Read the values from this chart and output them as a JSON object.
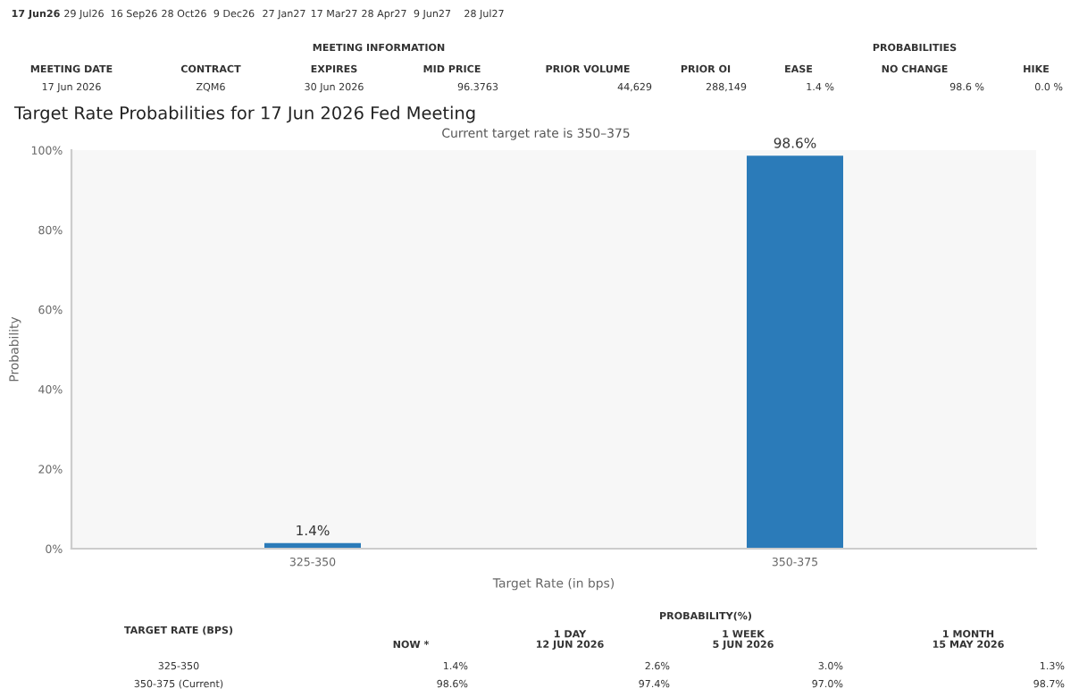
{
  "chart_data": {
    "type": "bar",
    "title": "Target Rate Probabilities for 17 Jun 2026 Fed Meeting",
    "subtitle": "Current target rate is 350–375",
    "xlabel": "Target Rate (in bps)",
    "ylabel": "Probability",
    "categories": [
      "325-350",
      "350-375"
    ],
    "values": [
      1.4,
      98.6
    ],
    "value_labels": [
      "1.4%",
      "98.6%"
    ],
    "color": "#2b7bb9",
    "ylim": [
      0,
      100
    ],
    "yticks": [
      {
        "value": 0,
        "label": "0%"
      },
      {
        "value": 20,
        "label": "20%"
      },
      {
        "value": 40,
        "label": "40%"
      },
      {
        "value": 60,
        "label": "60%"
      },
      {
        "value": 80,
        "label": "80%"
      },
      {
        "value": 100,
        "label": "100%"
      }
    ],
    "grid": false,
    "annotations": [
      "17 Jun26",
      "29 Jul26",
      "16 Sep26",
      "28 Oct26",
      "9 Dec26",
      "27 Jan27",
      "17 Mar27",
      "28 Apr27",
      "9 Jun27",
      "28 Jul27",
      "MEETING INFORMATION",
      "PROBABILITIES",
      "MEETING DATE",
      "CONTRACT",
      "EXPIRES",
      "MID PRICE",
      "PRIOR VOLUME",
      "PRIOR OI",
      "EASE",
      "NO CHANGE",
      "HIKE",
      "17 Jun 2026",
      "ZQM6",
      "30 Jun 2026",
      "96.3763",
      "44,629",
      "288,149",
      "1.4 %",
      "98.6 %",
      "0.0 %",
      "TARGET RATE (BPS)",
      "PROBABILITY(%)",
      "NOW *",
      "1 DAY\n12 JUN 2026",
      "1 WEEK\n5 JUN 2026",
      "1 MONTH\n15 MAY 2026",
      "325-350",
      "1.4%",
      "2.6%",
      "3.0%",
      "1.3%",
      "350-375 (Current)",
      "98.6%",
      "97.4%",
      "97.0%",
      "98.7%"
    ]
  }
}
